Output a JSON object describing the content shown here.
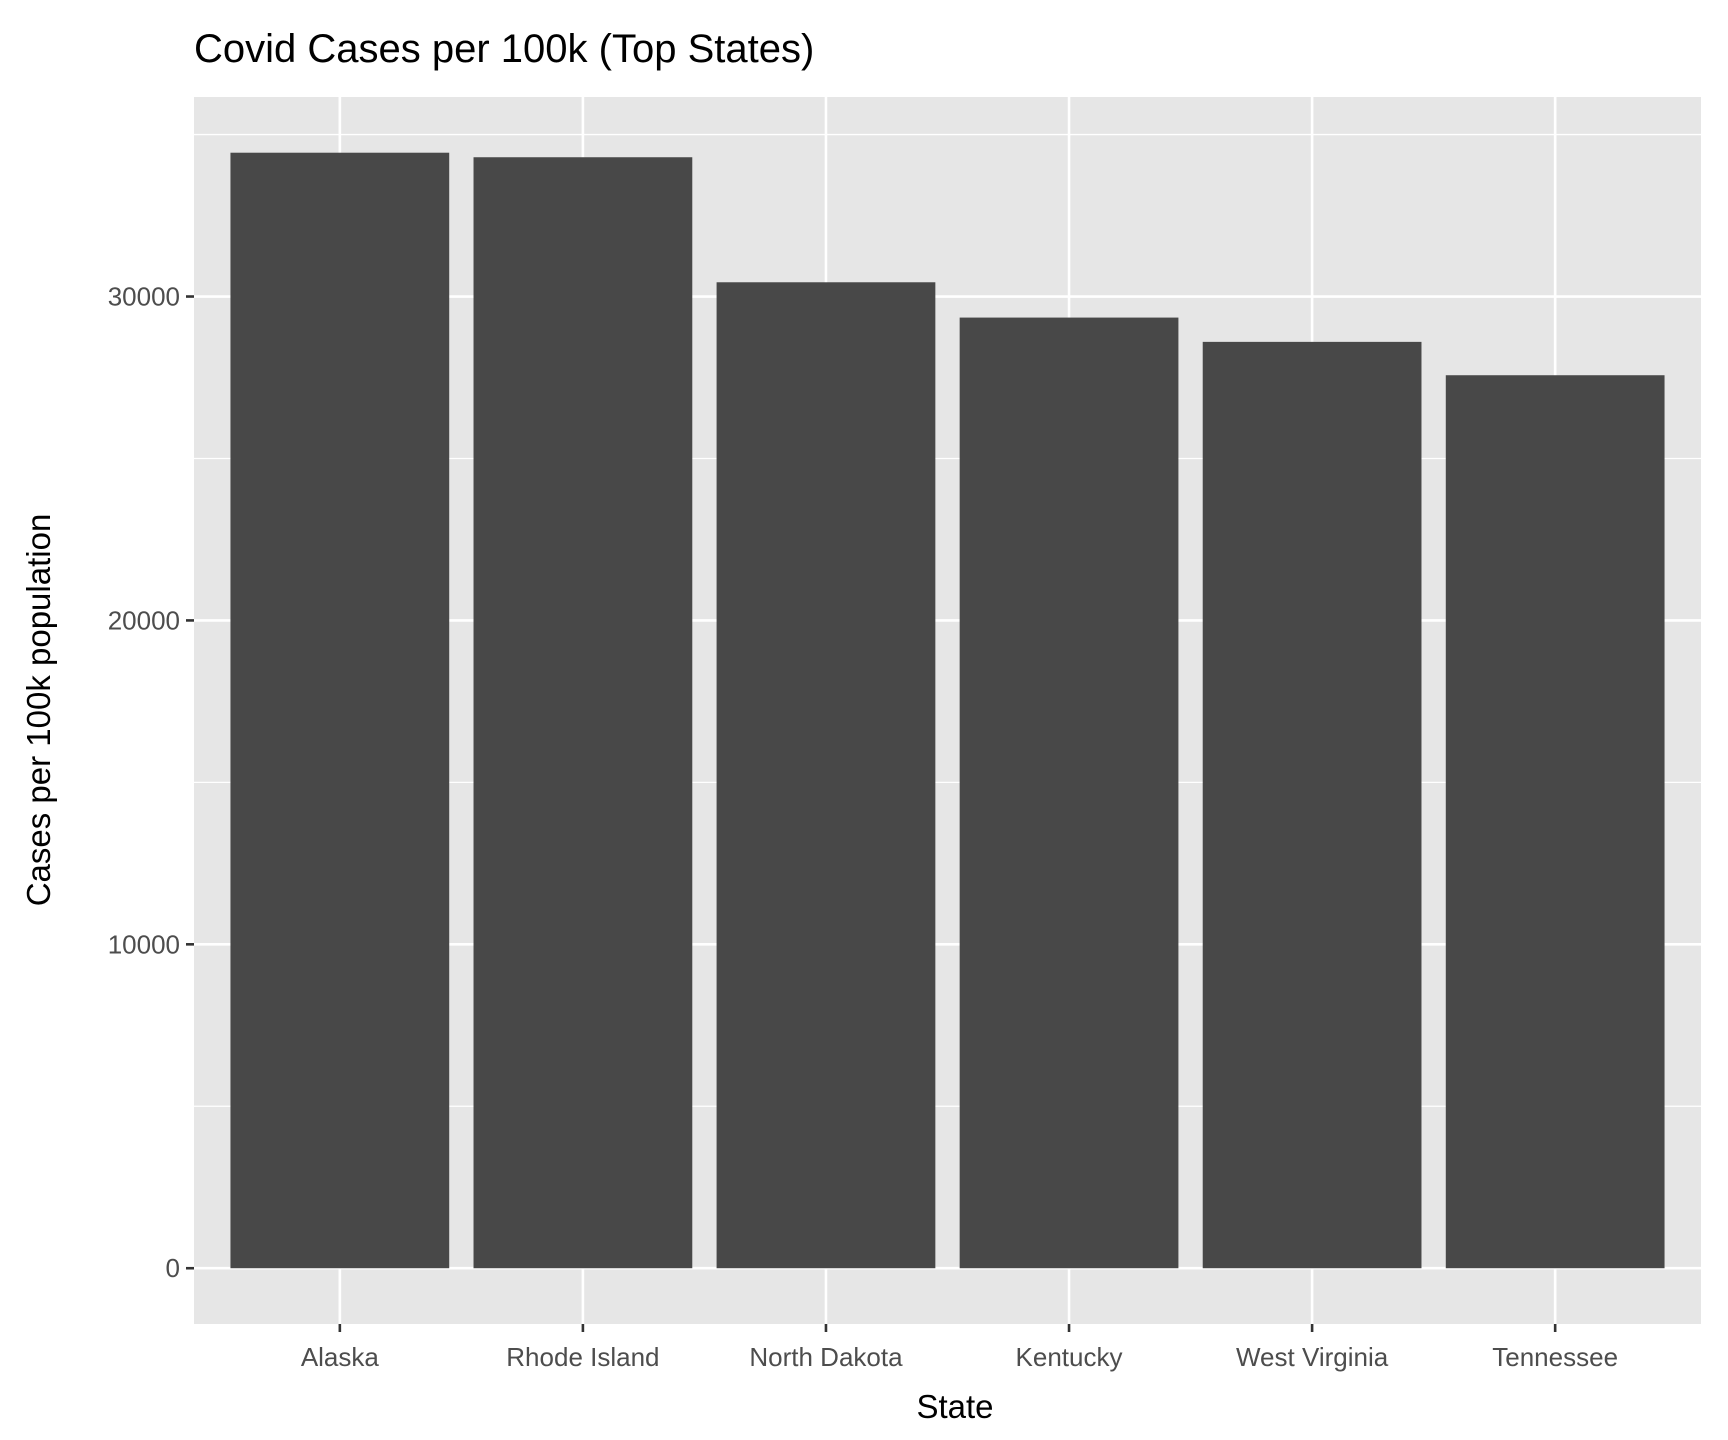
{
  "chart_data": {
    "type": "bar",
    "title": "Covid Cases per 100k (Top States)",
    "xlabel": "State",
    "ylabel": "Cases per 100k population",
    "categories": [
      "Alaska",
      "Rhode Island",
      "North Dakota",
      "Kentucky",
      "West Virginia",
      "Tennessee"
    ],
    "values": [
      34440,
      34300,
      30440,
      29350,
      28600,
      27570
    ],
    "ylim": [
      -1722,
      36160
    ],
    "yticks": [
      0,
      10000,
      20000,
      30000
    ],
    "ytick_labels": [
      "0",
      "10000",
      "20000",
      "30000"
    ],
    "grid": true,
    "colors": {
      "bar": "#484848",
      "panel": "#e6e6e6",
      "grid": "#ffffff"
    }
  }
}
